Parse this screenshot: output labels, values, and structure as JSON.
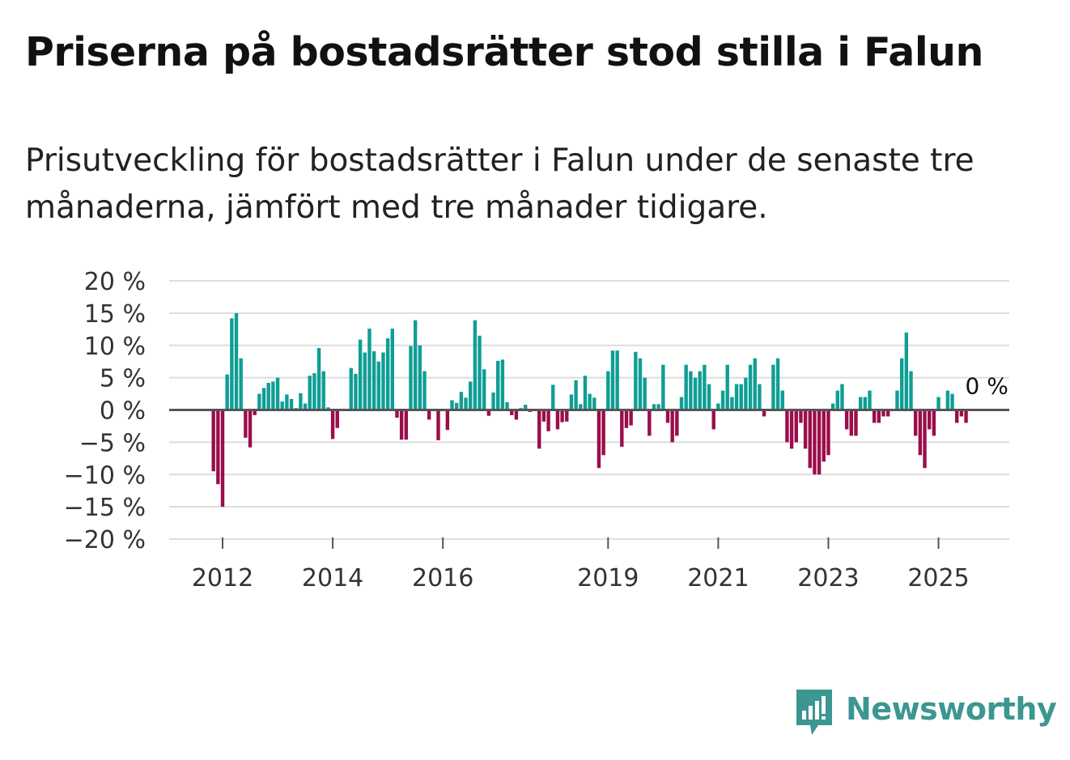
{
  "title": "Priserna på bostadsrätter stod stilla i Falun",
  "subtitle": "Prisutveckling för bostadsrätter i Falun under de senaste tre månaderna, jämfört med tre månader tidigare.",
  "brand": {
    "name": "Newsworthy",
    "icon": "newsworthy-logo-icon",
    "color": "#3c9691"
  },
  "colors": {
    "positive": "#0f9e95",
    "negative": "#9b0d4a",
    "grid": "#dddddd",
    "zero_line": "#555555",
    "axis_text": "#333333"
  },
  "chart_data": {
    "type": "bar",
    "title": "Priserna på bostadsrätter stod stilla i Falun",
    "xlabel": "",
    "ylabel": "",
    "ylim": [
      -20,
      20
    ],
    "y_ticks": [
      20,
      15,
      10,
      5,
      0,
      -5,
      -10,
      -15,
      -20
    ],
    "y_tick_labels": [
      "20 %",
      "15 %",
      "10 %",
      "5 %",
      "0 %",
      "−5 %",
      "−10 %",
      "−15 %",
      "−20 %"
    ],
    "x_start": "2011-10",
    "x_ticks": [
      {
        "label": "2012",
        "month_index": 3
      },
      {
        "label": "2014",
        "month_index": 27
      },
      {
        "label": "2016",
        "month_index": 51
      },
      {
        "label": "2019",
        "month_index": 87
      },
      {
        "label": "2021",
        "month_index": 111
      },
      {
        "label": "2023",
        "month_index": 135
      },
      {
        "label": "2025",
        "month_index": 159
      }
    ],
    "last_value_label": "0 %",
    "values": [
      0,
      -9.5,
      -11.5,
      -15,
      5.5,
      14.2,
      15,
      8,
      -4.3,
      -5.8,
      -0.8,
      2.5,
      3.4,
      4.2,
      4.4,
      5,
      1.3,
      2.4,
      1.7,
      0.3,
      2.6,
      1,
      5.3,
      5.7,
      9.6,
      6,
      0.4,
      -4.5,
      -2.8,
      0,
      0,
      6.5,
      5.6,
      10.9,
      8.9,
      12.6,
      9.1,
      7.5,
      8.9,
      11.1,
      12.6,
      -1.2,
      -4.6,
      -4.6,
      9.9,
      13.9,
      10,
      6,
      -1.5,
      0,
      -4.7,
      0,
      -3.1,
      1.5,
      1.1,
      2.8,
      1.9,
      4.4,
      13.9,
      11.5,
      6.3,
      -0.9,
      2.7,
      7.6,
      7.8,
      1.2,
      -0.8,
      -1.5,
      0.3,
      0.8,
      -0.3,
      0,
      -6,
      -1.8,
      -3.3,
      3.9,
      -3,
      -1.9,
      -1.8,
      2.4,
      4.6,
      0.9,
      5.3,
      2.5,
      1.9,
      -9,
      -7,
      6,
      9.2,
      9.2,
      -5.7,
      -2.8,
      -2.4,
      9,
      8,
      5,
      -4,
      0.9,
      0.9,
      7,
      -2,
      -5,
      -4,
      2,
      7,
      6,
      5,
      6,
      7,
      4,
      -3,
      1,
      3,
      7,
      2,
      4,
      4,
      5,
      7,
      8,
      4,
      -1,
      0,
      7,
      8,
      3,
      -5,
      -6,
      -5,
      -2,
      -6,
      -9,
      -10,
      -10,
      -8,
      -7,
      1,
      3,
      4,
      -3,
      -4,
      -4,
      2,
      2,
      3,
      -2,
      -2,
      -1,
      -1,
      0,
      3,
      8,
      12,
      6,
      -4,
      -7,
      -9,
      -3,
      -4,
      2,
      0,
      3,
      2.5,
      -2,
      -1,
      -2,
      0
    ]
  }
}
